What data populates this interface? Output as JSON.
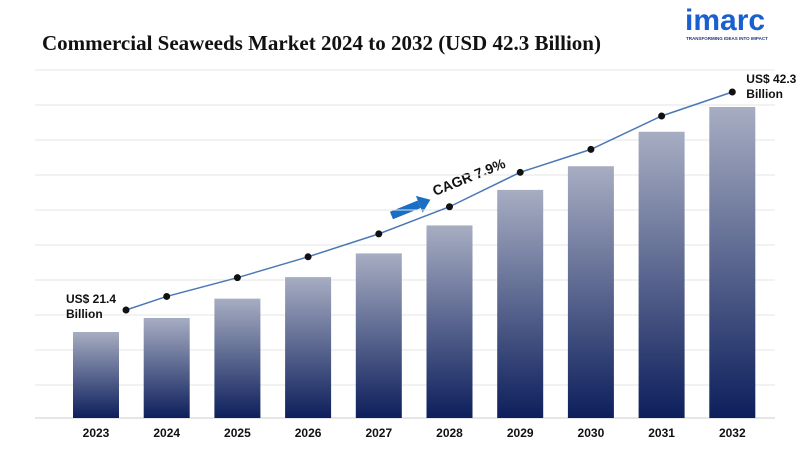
{
  "chart_data": {
    "type": "bar",
    "title": "Commercial Seaweeds Market 2024 to 2032 (USD 42.3 Billion)",
    "categories": [
      "2023",
      "2024",
      "2025",
      "2026",
      "2027",
      "2028",
      "2029",
      "2030",
      "2031",
      "2032"
    ],
    "values": [
      21.4,
      22.7,
      24.5,
      26.5,
      28.7,
      31.3,
      34.6,
      36.8,
      40.0,
      42.3
    ],
    "value_labels": [
      "US$ 21.4 Billion",
      null,
      null,
      null,
      null,
      null,
      null,
      null,
      null,
      "US$ 42.3 Billion"
    ],
    "annotation": "CAGR 7.9%",
    "color": "#0d1f5c",
    "line_color": "#4a78b5",
    "grid": true
  },
  "logo": {
    "name": "imarc",
    "tagline": "TRANSFORMING IDEAS INTO IMPACT"
  }
}
